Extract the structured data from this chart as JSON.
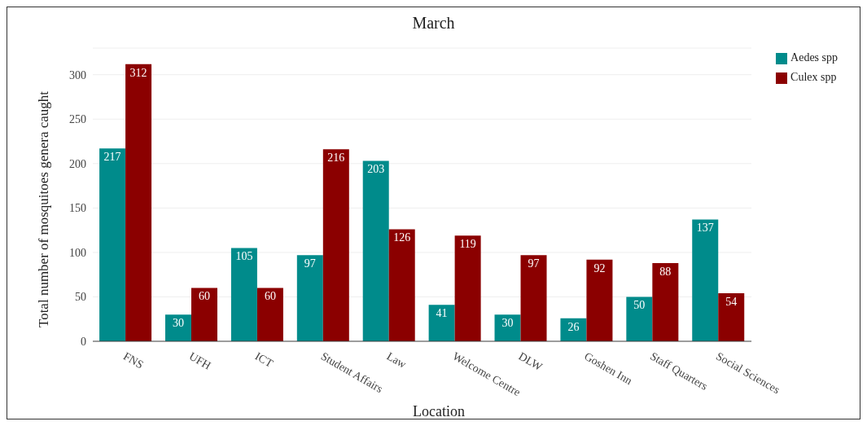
{
  "chart_data": {
    "type": "bar",
    "title": "March",
    "xlabel": "Location",
    "ylabel": "Total number of mosquitoes genera caught",
    "categories": [
      "FNS",
      "UFH",
      "ICT",
      "Student Affairs",
      "Law",
      "Welcome Centre",
      "DLW",
      "Goshen Inn",
      "Staff Quarters",
      "Social Sciences"
    ],
    "series": [
      {
        "name": "Aedes spp",
        "color": "#008b8b",
        "values": [
          217,
          30,
          105,
          97,
          203,
          41,
          30,
          26,
          50,
          137
        ]
      },
      {
        "name": "Culex spp",
        "color": "#8b0000",
        "values": [
          312,
          60,
          60,
          216,
          126,
          119,
          97,
          92,
          88,
          54
        ]
      }
    ],
    "ylim": [
      0,
      330
    ],
    "yticks": [
      0,
      50,
      100,
      150,
      200,
      250,
      300
    ],
    "grid": "y",
    "legend": "top right",
    "data_labels": true
  }
}
